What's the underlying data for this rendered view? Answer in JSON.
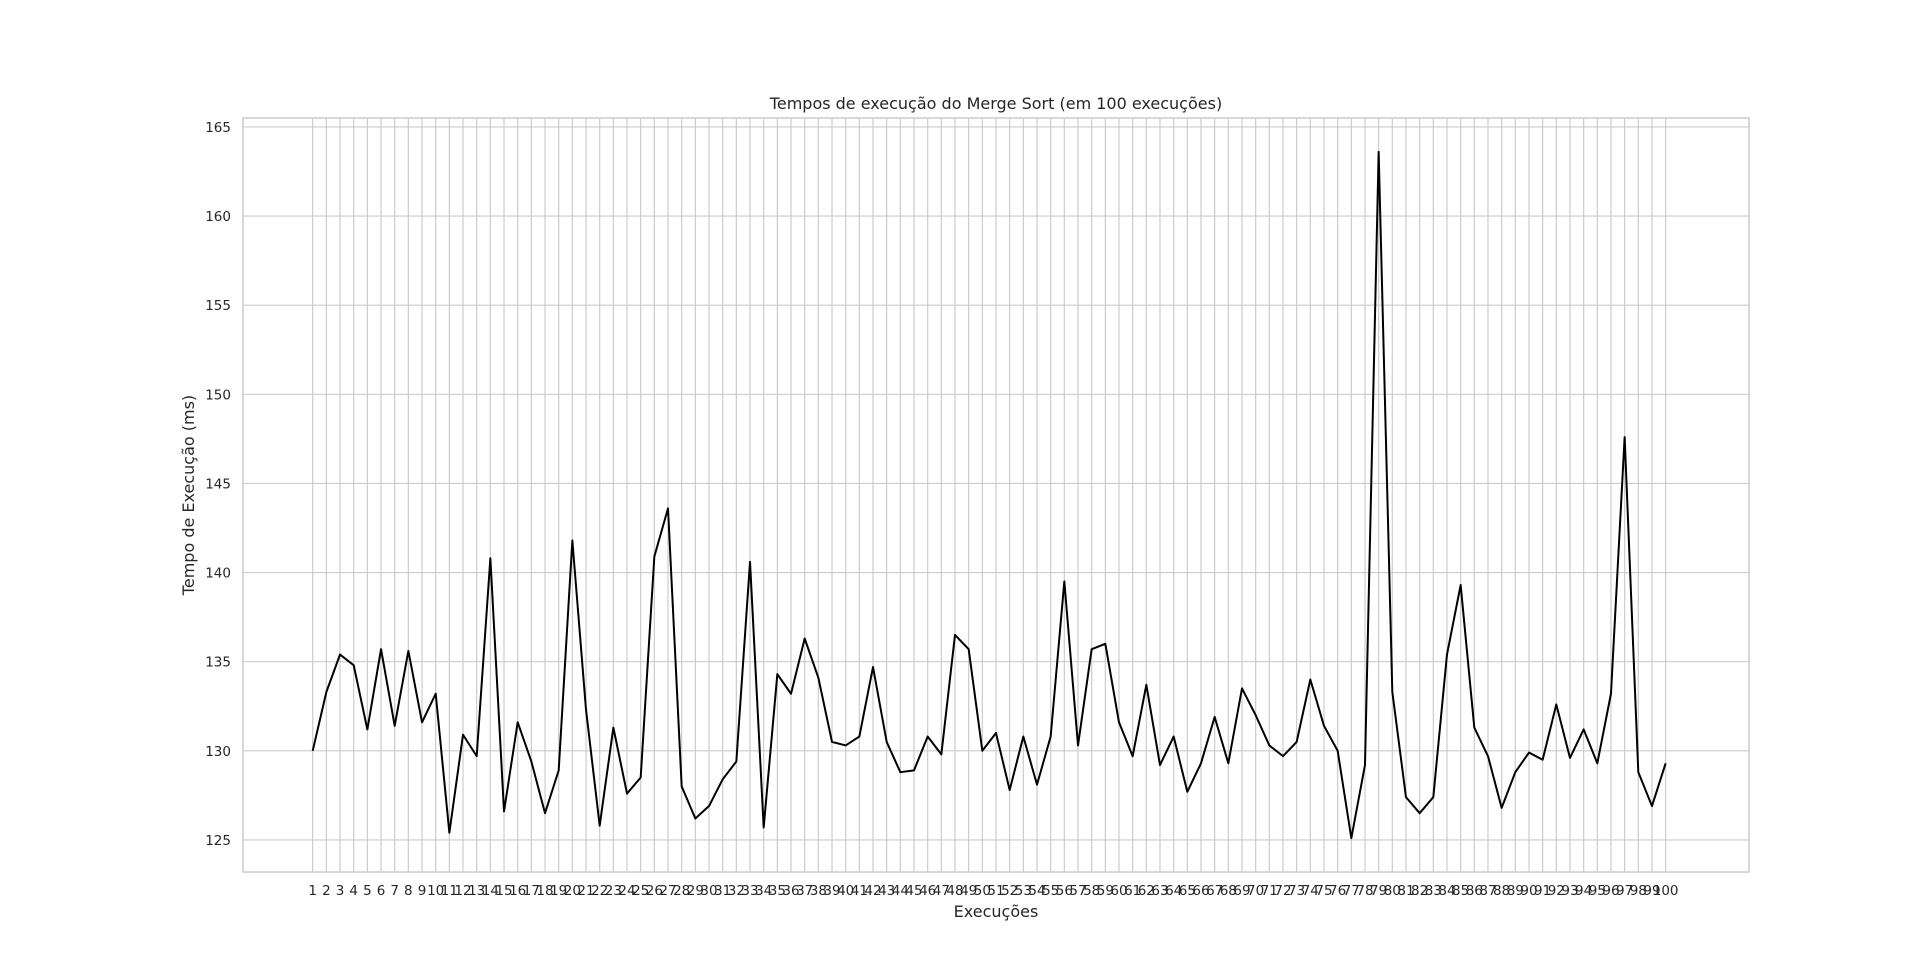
{
  "chart_data": {
    "type": "line",
    "title": "Tempos de execução do Merge Sort (em 100 execuções)",
    "xlabel": "Execuções",
    "ylabel": "Tempo de Execução (ms)",
    "grid": true,
    "x": [
      1,
      2,
      3,
      4,
      5,
      6,
      7,
      8,
      9,
      10,
      11,
      12,
      13,
      14,
      15,
      16,
      17,
      18,
      19,
      20,
      21,
      22,
      23,
      24,
      25,
      26,
      27,
      28,
      29,
      30,
      31,
      32,
      33,
      34,
      35,
      36,
      37,
      38,
      39,
      40,
      41,
      42,
      43,
      44,
      45,
      46,
      47,
      48,
      49,
      50,
      51,
      52,
      53,
      54,
      55,
      56,
      57,
      58,
      59,
      60,
      61,
      62,
      63,
      64,
      65,
      66,
      67,
      68,
      69,
      70,
      71,
      72,
      73,
      74,
      75,
      76,
      77,
      78,
      79,
      80,
      81,
      82,
      83,
      84,
      85,
      86,
      87,
      88,
      89,
      90,
      91,
      92,
      93,
      94,
      95,
      96,
      97,
      98,
      99,
      100
    ],
    "xticklabels": [
      "1",
      "2",
      "3",
      "4",
      "5",
      "6",
      "7",
      "8",
      "9",
      "10",
      "11",
      "12",
      "13",
      "14",
      "15",
      "16",
      "17",
      "18",
      "19",
      "20",
      "21",
      "22",
      "23",
      "24",
      "25",
      "26",
      "27",
      "28",
      "29",
      "30",
      "31",
      "32",
      "33",
      "34",
      "35",
      "36",
      "37",
      "38",
      "39",
      "40",
      "41",
      "42",
      "43",
      "44",
      "45",
      "46",
      "47",
      "48",
      "49",
      "50",
      "51",
      "52",
      "53",
      "54",
      "55",
      "56",
      "57",
      "58",
      "59",
      "60",
      "61",
      "62",
      "63",
      "64",
      "65",
      "66",
      "67",
      "68",
      "69",
      "70",
      "71",
      "72",
      "73",
      "74",
      "75",
      "76",
      "77",
      "78",
      "79",
      "80",
      "81",
      "82",
      "83",
      "84",
      "85",
      "86",
      "87",
      "88",
      "89",
      "90",
      "91",
      "92",
      "93",
      "94",
      "95",
      "96",
      "97",
      "98",
      "99",
      "100"
    ],
    "yticks": [
      125,
      130,
      135,
      140,
      145,
      150,
      155,
      160,
      165
    ],
    "yticklabels": [
      "125",
      "130",
      "135",
      "140",
      "145",
      "150",
      "155",
      "160",
      "165"
    ],
    "ylim": [
      123.2,
      165.5
    ],
    "xlim": [
      -4.1,
      106.1
    ],
    "series": [
      {
        "color": "#000000",
        "values": [
          130.0,
          133.3,
          135.4,
          134.8,
          131.2,
          135.7,
          131.4,
          135.6,
          131.6,
          133.2,
          125.4,
          130.9,
          129.7,
          140.8,
          126.6,
          131.6,
          129.4,
          126.5,
          128.9,
          141.8,
          132.3,
          125.8,
          131.3,
          127.6,
          128.5,
          140.9,
          143.6,
          128.0,
          126.2,
          126.9,
          128.4,
          129.4,
          140.6,
          125.7,
          134.3,
          133.2,
          136.3,
          134.1,
          130.5,
          130.3,
          130.8,
          134.7,
          130.5,
          128.8,
          128.9,
          130.8,
          129.8,
          136.5,
          135.7,
          130.0,
          131.0,
          127.8,
          130.8,
          128.1,
          130.8,
          139.5,
          130.3,
          135.7,
          136.0,
          131.6,
          129.7,
          133.7,
          129.2,
          130.8,
          127.7,
          129.3,
          131.9,
          129.3,
          133.5,
          132.0,
          130.3,
          129.7,
          130.5,
          134.0,
          131.4,
          130.0,
          125.1,
          129.2,
          163.6,
          133.3,
          127.4,
          126.5,
          127.4,
          135.4,
          139.3,
          131.3,
          129.7,
          126.8,
          128.8,
          129.9,
          129.5,
          132.6,
          129.6,
          131.2,
          129.3,
          133.2,
          147.6,
          128.8,
          126.9,
          129.3
        ]
      }
    ]
  }
}
